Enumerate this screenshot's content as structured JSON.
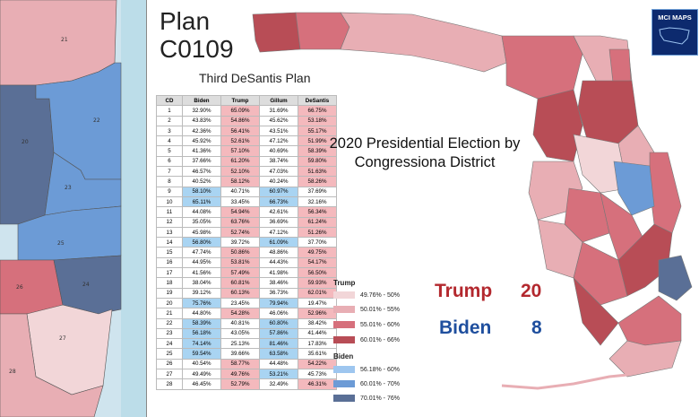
{
  "plan_title": "Plan C0109",
  "plan_subtitle": "Third DeSantis Plan",
  "map_title": "2020 Presidential Election by Congressiona District",
  "logo_text": "MCI MAPS",
  "table": {
    "headers": [
      "CD",
      "Biden",
      "Trump",
      "Gillum",
      "DeSantis"
    ],
    "rows": [
      [
        "1",
        "32.90%",
        "65.09%",
        "31.69%",
        "66.75%"
      ],
      [
        "2",
        "43.83%",
        "54.86%",
        "45.62%",
        "53.18%"
      ],
      [
        "3",
        "42.36%",
        "56.41%",
        "43.51%",
        "55.17%"
      ],
      [
        "4",
        "45.92%",
        "52.61%",
        "47.12%",
        "51.99%"
      ],
      [
        "5",
        "41.36%",
        "57.10%",
        "40.69%",
        "58.39%"
      ],
      [
        "6",
        "37.66%",
        "61.20%",
        "38.74%",
        "59.80%"
      ],
      [
        "7",
        "46.57%",
        "52.10%",
        "47.03%",
        "51.63%"
      ],
      [
        "8",
        "40.52%",
        "58.12%",
        "40.24%",
        "58.26%"
      ],
      [
        "9",
        "58.10%",
        "40.71%",
        "60.97%",
        "37.69%"
      ],
      [
        "10",
        "65.11%",
        "33.45%",
        "66.73%",
        "32.16%"
      ],
      [
        "11",
        "44.08%",
        "54.94%",
        "42.61%",
        "56.34%"
      ],
      [
        "12",
        "35.05%",
        "63.76%",
        "36.69%",
        "61.24%"
      ],
      [
        "13",
        "45.98%",
        "52.74%",
        "47.12%",
        "51.26%"
      ],
      [
        "14",
        "56.80%",
        "39.72%",
        "61.09%",
        "37.70%"
      ],
      [
        "15",
        "47.74%",
        "50.86%",
        "48.86%",
        "49.75%"
      ],
      [
        "16",
        "44.95%",
        "53.81%",
        "44.43%",
        "54.17%"
      ],
      [
        "17",
        "41.56%",
        "57.49%",
        "41.98%",
        "56.50%"
      ],
      [
        "18",
        "38.04%",
        "60.81%",
        "38.46%",
        "59.93%"
      ],
      [
        "19",
        "39.12%",
        "60.13%",
        "36.73%",
        "62.01%"
      ],
      [
        "20",
        "75.76%",
        "23.45%",
        "79.94%",
        "19.47%"
      ],
      [
        "21",
        "44.80%",
        "54.28%",
        "46.06%",
        "52.96%"
      ],
      [
        "22",
        "58.39%",
        "40.81%",
        "60.80%",
        "38.42%"
      ],
      [
        "23",
        "56.18%",
        "43.05%",
        "57.86%",
        "41.44%"
      ],
      [
        "24",
        "74.14%",
        "25.13%",
        "81.46%",
        "17.83%"
      ],
      [
        "25",
        "59.54%",
        "39.66%",
        "63.58%",
        "35.61%"
      ],
      [
        "26",
        "40.54%",
        "58.77%",
        "44.48%",
        "54.22%"
      ],
      [
        "27",
        "49.49%",
        "49.76%",
        "53.21%",
        "45.73%"
      ],
      [
        "28",
        "46.45%",
        "52.79%",
        "32.49%",
        "46.31%"
      ]
    ]
  },
  "legend": {
    "trump_title": "Trump",
    "trump_items": [
      "49.76% - 50%",
      "50.01% - 55%",
      "55.01% - 60%",
      "60.01% - 66%"
    ],
    "biden_title": "Biden",
    "biden_items": [
      "56.18% - 60%",
      "60.01% - 70%",
      "70.01% - 76%"
    ]
  },
  "colors": {
    "trump_1": "#f2d6d8",
    "trump_2": "#e8aeb4",
    "trump_3": "#d6707c",
    "trump_4": "#b84d56",
    "biden_1": "#9ec6ef",
    "biden_2": "#6c9bd6",
    "biden_3": "#5a6f96",
    "table_red": "#f4b9bd",
    "table_blue": "#a9d4f2",
    "trump_text": "#b3282e",
    "biden_text": "#1f4f9e"
  },
  "tally": {
    "trump_label": "Trump",
    "trump_count": "20",
    "biden_label": "Biden",
    "biden_count": "8"
  },
  "inset_labels": [
    "21",
    "22",
    "20",
    "23",
    "25",
    "26",
    "24",
    "27",
    "28"
  ]
}
